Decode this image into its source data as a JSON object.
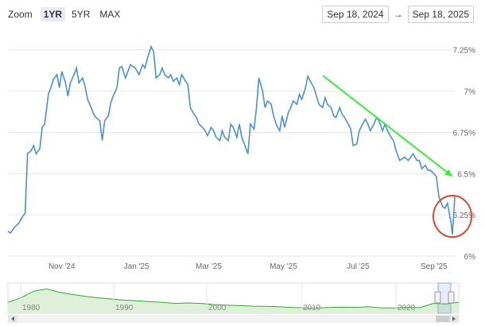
{
  "zoom": {
    "label": "Zoom",
    "buttons": [
      "1YR",
      "5YR",
      "MAX"
    ],
    "active": "1YR"
  },
  "range": {
    "from": "Sep 18, 2024",
    "arrow": "→",
    "to": "Sep 18, 2025"
  },
  "colors": {
    "line": "#4a90d9",
    "grid": "#e6e6e6",
    "trend_arrow": "#33ee33",
    "highlight_circle": "#e0452a",
    "navigator_line": "#33aa33",
    "navigator_fill": "#dff0d8"
  },
  "chart_data": {
    "type": "line",
    "title": "",
    "xlabel": "",
    "ylabel": "",
    "x_tick_labels": [
      "Nov '24",
      "Jan '25",
      "Mar '25",
      "May '25",
      "Jul '25",
      "Sep '25"
    ],
    "y_tick_labels": [
      "6%",
      "6.25%",
      "6.5%",
      "6.75%",
      "7%",
      "7.25%"
    ],
    "ylim": [
      6.0,
      7.35
    ],
    "grid": true,
    "series": [
      {
        "points": [
          [
            "2024-09-18",
            6.15
          ],
          [
            "2024-09-20",
            6.14
          ],
          [
            "2024-09-24",
            6.18
          ],
          [
            "2024-09-27",
            6.2
          ],
          [
            "2024-09-30",
            6.24
          ],
          [
            "2024-10-02",
            6.26
          ],
          [
            "2024-10-04",
            6.62
          ],
          [
            "2024-10-07",
            6.64
          ],
          [
            "2024-10-09",
            6.67
          ],
          [
            "2024-10-11",
            6.62
          ],
          [
            "2024-10-14",
            6.65
          ],
          [
            "2024-10-16",
            6.78
          ],
          [
            "2024-10-18",
            6.8
          ],
          [
            "2024-10-21",
            6.98
          ],
          [
            "2024-10-23",
            7.02
          ],
          [
            "2024-10-25",
            7.07
          ],
          [
            "2024-10-28",
            7.1
          ],
          [
            "2024-10-30",
            7.02
          ],
          [
            "2024-11-01",
            7.12
          ],
          [
            "2024-11-04",
            7.05
          ],
          [
            "2024-11-06",
            6.97
          ],
          [
            "2024-11-08",
            7.05
          ],
          [
            "2024-11-11",
            7.1
          ],
          [
            "2024-11-13",
            7.14
          ],
          [
            "2024-11-15",
            7.05
          ],
          [
            "2024-11-18",
            7.08
          ],
          [
            "2024-11-20",
            7.03
          ],
          [
            "2024-11-22",
            6.95
          ],
          [
            "2024-11-25",
            6.9
          ],
          [
            "2024-11-27",
            6.86
          ],
          [
            "2024-11-29",
            6.84
          ],
          [
            "2024-12-02",
            6.82
          ],
          [
            "2024-12-04",
            6.7
          ],
          [
            "2024-12-06",
            6.82
          ],
          [
            "2024-12-09",
            6.85
          ],
          [
            "2024-12-11",
            6.93
          ],
          [
            "2024-12-13",
            6.97
          ],
          [
            "2024-12-16",
            7.02
          ],
          [
            "2024-12-18",
            7.14
          ],
          [
            "2024-12-20",
            7.15
          ],
          [
            "2024-12-23",
            7.08
          ],
          [
            "2024-12-27",
            7.16
          ],
          [
            "2024-12-31",
            7.14
          ],
          [
            "2025-01-03",
            7.1
          ],
          [
            "2025-01-06",
            7.16
          ],
          [
            "2025-01-08",
            7.14
          ],
          [
            "2025-01-10",
            7.2
          ],
          [
            "2025-01-13",
            7.27
          ],
          [
            "2025-01-15",
            7.24
          ],
          [
            "2025-01-17",
            7.08
          ],
          [
            "2025-01-20",
            7.1
          ],
          [
            "2025-01-22",
            7.14
          ],
          [
            "2025-01-24",
            7.1
          ],
          [
            "2025-01-27",
            7.08
          ],
          [
            "2025-01-29",
            7.1
          ],
          [
            "2025-01-31",
            7.06
          ],
          [
            "2025-02-03",
            7.08
          ],
          [
            "2025-02-05",
            7.04
          ],
          [
            "2025-02-07",
            7.1
          ],
          [
            "2025-02-10",
            7.06
          ],
          [
            "2025-02-12",
            7.04
          ],
          [
            "2025-02-14",
            6.9
          ],
          [
            "2025-02-17",
            6.86
          ],
          [
            "2025-02-19",
            6.84
          ],
          [
            "2025-02-21",
            6.8
          ],
          [
            "2025-02-24",
            6.78
          ],
          [
            "2025-02-26",
            6.76
          ],
          [
            "2025-02-28",
            6.73
          ],
          [
            "2025-03-03",
            6.78
          ],
          [
            "2025-03-05",
            6.76
          ],
          [
            "2025-03-07",
            6.72
          ],
          [
            "2025-03-10",
            6.7
          ],
          [
            "2025-03-12",
            6.76
          ],
          [
            "2025-03-14",
            6.72
          ],
          [
            "2025-03-17",
            6.7
          ],
          [
            "2025-03-19",
            6.8
          ],
          [
            "2025-03-21",
            6.78
          ],
          [
            "2025-03-24",
            6.72
          ],
          [
            "2025-03-26",
            6.8
          ],
          [
            "2025-03-28",
            6.72
          ],
          [
            "2025-03-31",
            6.66
          ],
          [
            "2025-04-02",
            6.62
          ],
          [
            "2025-04-04",
            6.8
          ],
          [
            "2025-04-07",
            6.77
          ],
          [
            "2025-04-09",
            6.9
          ],
          [
            "2025-04-11",
            7.08
          ],
          [
            "2025-04-14",
            7.0
          ],
          [
            "2025-04-16",
            6.9
          ],
          [
            "2025-04-18",
            6.94
          ],
          [
            "2025-04-21",
            6.92
          ],
          [
            "2025-04-23",
            6.85
          ],
          [
            "2025-04-25",
            6.8
          ],
          [
            "2025-04-28",
            6.76
          ],
          [
            "2025-04-30",
            6.85
          ],
          [
            "2025-05-02",
            6.78
          ],
          [
            "2025-05-05",
            6.87
          ],
          [
            "2025-05-07",
            6.9
          ],
          [
            "2025-05-09",
            6.94
          ],
          [
            "2025-05-12",
            6.92
          ],
          [
            "2025-05-14",
            6.98
          ],
          [
            "2025-05-16",
            6.95
          ],
          [
            "2025-05-19",
            7.02
          ],
          [
            "2025-05-21",
            7.09
          ],
          [
            "2025-05-23",
            7.06
          ],
          [
            "2025-05-26",
            7.02
          ],
          [
            "2025-05-28",
            6.97
          ],
          [
            "2025-05-30",
            6.92
          ],
          [
            "2025-06-02",
            6.9
          ],
          [
            "2025-06-04",
            6.96
          ],
          [
            "2025-06-06",
            6.92
          ],
          [
            "2025-06-09",
            6.9
          ],
          [
            "2025-06-11",
            6.85
          ],
          [
            "2025-06-13",
            6.84
          ],
          [
            "2025-06-16",
            6.9
          ],
          [
            "2025-06-18",
            6.86
          ],
          [
            "2025-06-20",
            6.84
          ],
          [
            "2025-06-23",
            6.8
          ],
          [
            "2025-06-25",
            6.77
          ],
          [
            "2025-06-27",
            6.67
          ],
          [
            "2025-06-30",
            6.68
          ],
          [
            "2025-07-02",
            6.76
          ],
          [
            "2025-07-04",
            6.79
          ],
          [
            "2025-07-07",
            6.83
          ],
          [
            "2025-07-09",
            6.8
          ],
          [
            "2025-07-11",
            6.76
          ],
          [
            "2025-07-14",
            6.8
          ],
          [
            "2025-07-16",
            6.84
          ],
          [
            "2025-07-18",
            6.82
          ],
          [
            "2025-07-21",
            6.76
          ],
          [
            "2025-07-23",
            6.8
          ],
          [
            "2025-07-25",
            6.76
          ],
          [
            "2025-07-28",
            6.72
          ],
          [
            "2025-07-30",
            6.7
          ],
          [
            "2025-08-01",
            6.64
          ],
          [
            "2025-08-04",
            6.58
          ],
          [
            "2025-08-06",
            6.59
          ],
          [
            "2025-08-08",
            6.6
          ],
          [
            "2025-08-11",
            6.58
          ],
          [
            "2025-08-13",
            6.6
          ],
          [
            "2025-08-15",
            6.62
          ],
          [
            "2025-08-18",
            6.58
          ],
          [
            "2025-08-20",
            6.58
          ],
          [
            "2025-08-22",
            6.53
          ],
          [
            "2025-08-25",
            6.55
          ],
          [
            "2025-08-27",
            6.52
          ],
          [
            "2025-08-29",
            6.52
          ],
          [
            "2025-09-01",
            6.5
          ],
          [
            "2025-09-03",
            6.48
          ],
          [
            "2025-09-05",
            6.36
          ],
          [
            "2025-09-08",
            6.3
          ],
          [
            "2025-09-10",
            6.29
          ],
          [
            "2025-09-12",
            6.32
          ],
          [
            "2025-09-15",
            6.2
          ],
          [
            "2025-09-16",
            6.13
          ],
          [
            "2025-09-17",
            6.24
          ],
          [
            "2025-09-18",
            6.36
          ]
        ]
      }
    ],
    "annotations": [
      {
        "kind": "arrow",
        "meaning": "downward trend"
      },
      {
        "kind": "circle",
        "meaning": "recent rebound"
      }
    ]
  },
  "navigator": {
    "year_labels": [
      "1980",
      "1990",
      "2000",
      "2010",
      "2020"
    ]
  }
}
